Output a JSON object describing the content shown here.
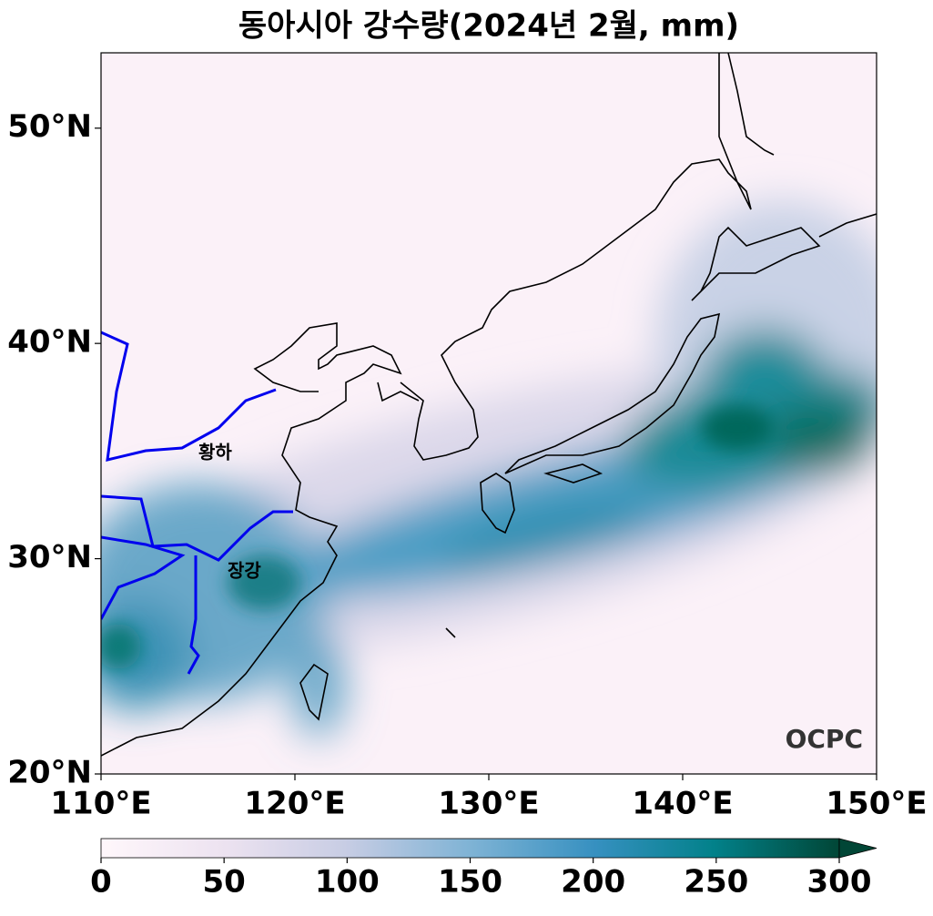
{
  "title": "동아시아 강수량(2024년 2월, mm)",
  "map": {
    "xlim": [
      110,
      150
    ],
    "ylim": [
      20,
      53.5
    ],
    "xticks": [
      {
        "value": 110,
        "label": "110°E"
      },
      {
        "value": 120,
        "label": "120°E"
      },
      {
        "value": 130,
        "label": "130°E"
      },
      {
        "value": 140,
        "label": "140°E"
      },
      {
        "value": 150,
        "label": "150°E"
      }
    ],
    "yticks": [
      {
        "value": 20,
        "label": "20°N"
      },
      {
        "value": 30,
        "label": "30°N"
      },
      {
        "value": 40,
        "label": "40°N"
      },
      {
        "value": 50,
        "label": "50°N"
      }
    ],
    "rivers": [
      "황하",
      "장강"
    ],
    "logo": "OCPC"
  },
  "colorbar": {
    "range": [
      0,
      300
    ],
    "ticks": [
      0,
      50,
      100,
      150,
      200,
      250,
      300
    ]
  }
}
